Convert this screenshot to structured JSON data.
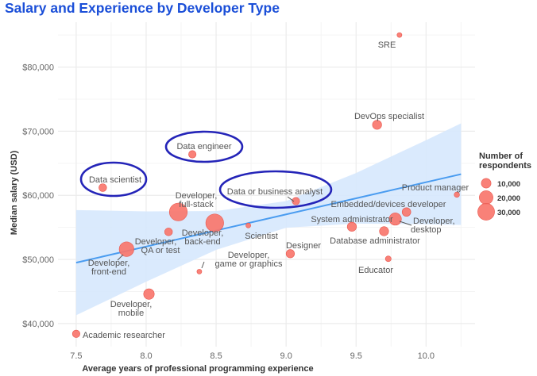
{
  "chart_data": {
    "type": "scatter",
    "title": "Salary and Experience by Developer Type",
    "xlabel": "Average years of professional programming experience",
    "ylabel": "Median salary (USD)",
    "xlim": [
      7.37,
      10.35
    ],
    "ylim": [
      36400,
      87000
    ],
    "x_ticks": [
      7.5,
      8.0,
      8.5,
      9.0,
      9.5,
      10.0
    ],
    "x_tick_labels": [
      "7.5",
      "8.0",
      "8.5",
      "9.0",
      "9.5",
      "10.0"
    ],
    "y_ticks": [
      40000,
      50000,
      60000,
      70000,
      80000
    ],
    "y_tick_labels": [
      "$40,000",
      "$50,000",
      "$60,000",
      "$70,000",
      "$80,000"
    ],
    "grid": true,
    "point_color": "#f8766d",
    "trend_color": "#4a9cf0",
    "band_color": "#d6e8fd",
    "highlight_color": "#2424b8",
    "points": [
      {
        "name": "SRE",
        "label_lines": [
          "SRE"
        ],
        "x": 9.81,
        "y": 85000,
        "n": 2500
      },
      {
        "name": "DevOps specialist",
        "label_lines": [
          "DevOps specialist"
        ],
        "x": 9.65,
        "y": 71000,
        "n": 9000
      },
      {
        "name": "Data engineer",
        "label_lines": [
          "Data engineer"
        ],
        "x": 8.33,
        "y": 66400,
        "n": 6000,
        "highlighted": true
      },
      {
        "name": "Data scientist",
        "label_lines": [
          "Data scientist"
        ],
        "x": 7.69,
        "y": 61200,
        "n": 6500,
        "highlighted": true
      },
      {
        "name": "Data or business analyst",
        "label_lines": [
          "Data or business analyst"
        ],
        "x": 9.07,
        "y": 59100,
        "n": 6000,
        "highlighted": true
      },
      {
        "name": "Product manager",
        "label_lines": [
          "Product manager"
        ],
        "x": 10.22,
        "y": 60100,
        "n": 3000
      },
      {
        "name": "Embedded/devices developer",
        "label_lines": [
          "Embedded/devices developer"
        ],
        "x": 9.86,
        "y": 57400,
        "n": 8000
      },
      {
        "name": "Developer, desktop",
        "label_lines": [
          "Developer,",
          "desktop"
        ],
        "x": 9.78,
        "y": 56300,
        "n": 16000
      },
      {
        "name": "System administrator",
        "label_lines": [
          "System administrator"
        ],
        "x": 9.47,
        "y": 55100,
        "n": 9000
      },
      {
        "name": "Database administrator",
        "label_lines": [
          "Database administrator"
        ],
        "x": 9.7,
        "y": 54400,
        "n": 9000
      },
      {
        "name": "Designer",
        "label_lines": [
          "Designer"
        ],
        "x": 9.03,
        "y": 50900,
        "n": 7500
      },
      {
        "name": "Educator",
        "label_lines": [
          "Educator"
        ],
        "x": 9.73,
        "y": 50100,
        "n": 3500
      },
      {
        "name": "Developer, full-stack",
        "label_lines": [
          "Developer,",
          "full-stack"
        ],
        "x": 8.23,
        "y": 57400,
        "n": 34000
      },
      {
        "name": "Developer, back-end",
        "label_lines": [
          "Developer,",
          "back-end"
        ],
        "x": 8.49,
        "y": 55700,
        "n": 34000
      },
      {
        "name": "Developer, QA or test",
        "label_lines": [
          "Developer,",
          "QA or test"
        ],
        "x": 8.16,
        "y": 54300,
        "n": 6500
      },
      {
        "name": "Scientist",
        "label_lines": [
          "Scientist"
        ],
        "x": 8.73,
        "y": 55300,
        "n": 2500
      },
      {
        "name": "Developer, front-end",
        "label_lines": [
          "Developer,",
          "front-end"
        ],
        "x": 7.86,
        "y": 51600,
        "n": 23000
      },
      {
        "name": "Developer, game or graphics",
        "label_lines": [
          "Developer,",
          "game or graphics"
        ],
        "x": 8.38,
        "y": 48100,
        "n": 2500
      },
      {
        "name": "Developer, mobile",
        "label_lines": [
          "Developer,",
          "mobile"
        ],
        "x": 8.02,
        "y": 44600,
        "n": 12000
      },
      {
        "name": "Academic researcher",
        "label_lines": [
          "Academic researcher"
        ],
        "x": 7.5,
        "y": 38400,
        "n": 6000
      }
    ],
    "trend": {
      "x": [
        7.5,
        8.0,
        8.5,
        9.0,
        9.5,
        10.0,
        10.25
      ],
      "fit": [
        49500,
        52009,
        54518,
        57027,
        59536,
        62045,
        63300
      ],
      "ci_lower": [
        41300,
        46523,
        51493,
        54947,
        55586,
        55491,
        55380
      ],
      "ci_upper": [
        57700,
        57495,
        57543,
        59107,
        63486,
        68599,
        71220
      ]
    },
    "legend": {
      "title_lines": [
        "Number of",
        "respondents"
      ],
      "placement": "right",
      "entries": [
        {
          "label": "10,000",
          "n": 10000
        },
        {
          "label": "20,000",
          "n": 20000
        },
        {
          "label": "30,000",
          "n": 30000
        }
      ]
    }
  }
}
